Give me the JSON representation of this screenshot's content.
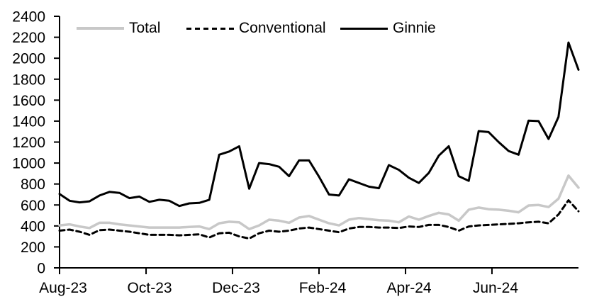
{
  "chart_data": {
    "type": "line",
    "title": "",
    "x_type": "weekly_index",
    "x_ticks": [
      {
        "label": "Aug-23",
        "week": 0
      },
      {
        "label": "Oct-23",
        "week": 8.67
      },
      {
        "label": "Dec-23",
        "week": 17.33
      },
      {
        "label": "Feb-24",
        "week": 26
      },
      {
        "label": "Apr-24",
        "week": 34.67
      },
      {
        "label": "Jun-24",
        "week": 43.33
      }
    ],
    "y_tick_labels": [
      "0",
      "200",
      "400",
      "600",
      "800",
      "1000",
      "1200",
      "1400",
      "1600",
      "1800",
      "2000",
      "2200",
      "2400"
    ],
    "y_tick_step": 200,
    "ylim": [
      0,
      2400
    ],
    "grid": "off",
    "legend_position": "top",
    "axis_color": "#000000",
    "series": [
      {
        "name": "Total",
        "color": "#c8c8c8",
        "dash": null,
        "width": 3.5,
        "values": [
          405,
          415,
          395,
          380,
          430,
          430,
          415,
          405,
          395,
          385,
          385,
          385,
          385,
          390,
          395,
          370,
          425,
          440,
          435,
          370,
          405,
          460,
          450,
          430,
          480,
          495,
          460,
          425,
          405,
          460,
          475,
          465,
          455,
          450,
          435,
          490,
          460,
          495,
          525,
          510,
          450,
          555,
          575,
          560,
          555,
          545,
          530,
          595,
          600,
          580,
          660,
          880,
          765
        ]
      },
      {
        "name": "Conventional",
        "color": "#000000",
        "dash": "7 5",
        "width": 3,
        "values": [
          355,
          365,
          345,
          315,
          360,
          365,
          355,
          345,
          330,
          315,
          315,
          315,
          310,
          315,
          320,
          290,
          330,
          335,
          300,
          280,
          330,
          355,
          345,
          355,
          375,
          385,
          370,
          355,
          340,
          375,
          390,
          390,
          385,
          385,
          380,
          395,
          390,
          410,
          410,
          390,
          355,
          395,
          405,
          410,
          415,
          420,
          425,
          435,
          440,
          425,
          510,
          645,
          540
        ]
      },
      {
        "name": "Ginnie",
        "color": "#000000",
        "dash": null,
        "width": 3,
        "values": [
          705,
          640,
          625,
          635,
          690,
          725,
          715,
          665,
          680,
          630,
          650,
          640,
          590,
          615,
          620,
          650,
          1080,
          1110,
          1160,
          755,
          1000,
          990,
          965,
          875,
          1025,
          1025,
          870,
          700,
          690,
          845,
          810,
          775,
          760,
          980,
          935,
          860,
          810,
          905,
          1070,
          1160,
          875,
          830,
          1305,
          1295,
          1200,
          1115,
          1080,
          1405,
          1400,
          1230,
          1440,
          2150,
          1890
        ]
      }
    ]
  },
  "legend": {
    "items": [
      {
        "label": "Total"
      },
      {
        "label": "Conventional"
      },
      {
        "label": "Ginnie"
      }
    ]
  }
}
